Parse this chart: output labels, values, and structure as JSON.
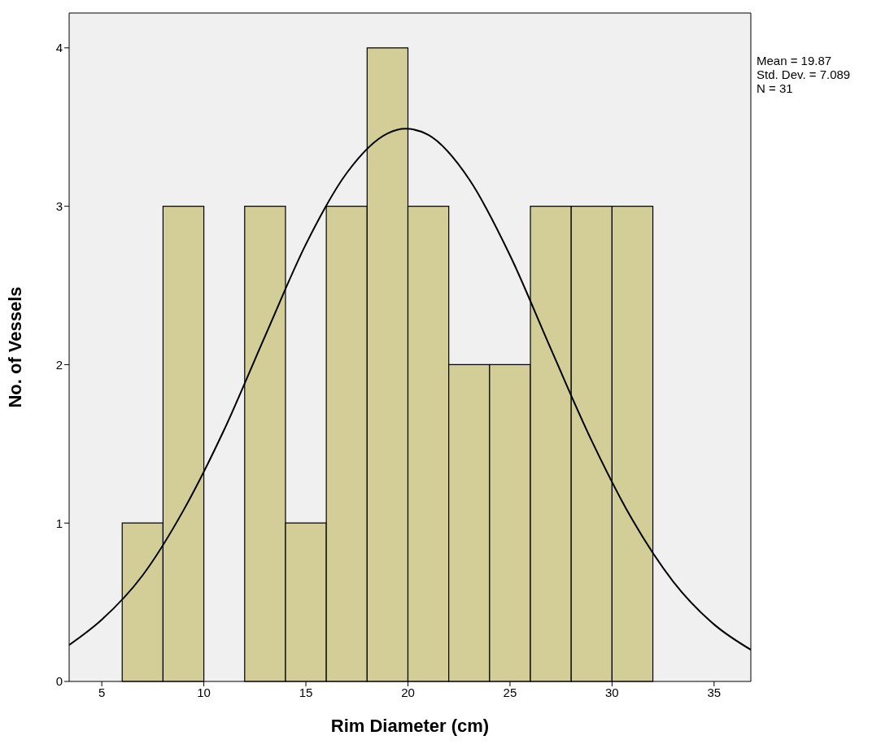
{
  "chart_data": {
    "type": "histogram",
    "xlabel": "Rim Diameter (cm)",
    "ylabel": "No. of Vessels",
    "bins": [
      6,
      8,
      10,
      12,
      14,
      16,
      18,
      20,
      22,
      24,
      26,
      28,
      30,
      32
    ],
    "values": [
      1,
      3,
      0,
      3,
      1,
      3,
      4,
      3,
      2,
      2,
      3,
      3,
      3
    ],
    "color": "#d3ce97",
    "series": [
      {
        "type": "line",
        "color": "#000000",
        "x": [
          3.4,
          5,
          7,
          9,
          11,
          13,
          15,
          17,
          19,
          19.87,
          21,
          23,
          25,
          27,
          29,
          31,
          33,
          35,
          36.8
        ],
        "values": [
          0.23,
          0.39,
          0.67,
          1.08,
          1.59,
          2.18,
          2.76,
          3.21,
          3.46,
          3.49,
          3.45,
          3.17,
          2.69,
          2.1,
          1.52,
          1.02,
          0.63,
          0.36,
          0.2
        ]
      }
    ],
    "marker": "none",
    "line_style": "solid",
    "grid": false,
    "xlim": [
      3.4,
      36.8
    ],
    "xticks": [
      5,
      10,
      15,
      20,
      25,
      30,
      35
    ],
    "ylim": [
      0,
      4.22
    ],
    "yticks": [
      0,
      1,
      2,
      3,
      4
    ],
    "annotations": [
      "Mean = 19.87",
      "Std. Dev. = 7.089",
      "N = 31"
    ]
  }
}
